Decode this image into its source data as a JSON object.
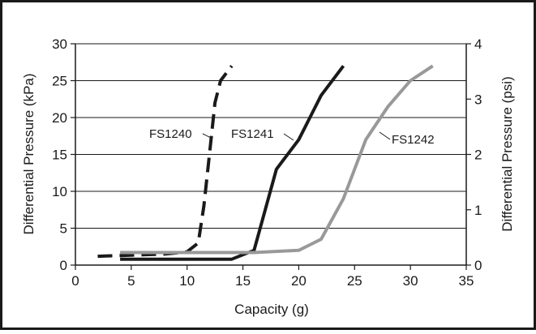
{
  "chart_data": {
    "type": "line",
    "xlabel": "Capacity (g)",
    "ylabel": "Differential Pressure (kPa)",
    "y2label": "Differential Pressure (psi)",
    "xlim": [
      0,
      35
    ],
    "ylim": [
      0,
      30
    ],
    "y2lim": [
      0,
      4
    ],
    "x_ticks": [
      "0",
      "5",
      "10",
      "15",
      "20",
      "25",
      "30",
      "35"
    ],
    "y_ticks": [
      "0",
      "5",
      "10",
      "15",
      "20",
      "25",
      "30"
    ],
    "y2_ticks": [
      "0",
      "1",
      "2",
      "3",
      "4"
    ],
    "grid": "horizontal",
    "series": [
      {
        "name": "FS1240",
        "color": "#1a1a1a",
        "style": "dashed",
        "points": [
          [
            2,
            1.2
          ],
          [
            4,
            1.3
          ],
          [
            6,
            1.4
          ],
          [
            8,
            1.5
          ],
          [
            10,
            1.8
          ],
          [
            11,
            3
          ],
          [
            11.5,
            8
          ],
          [
            12,
            15
          ],
          [
            12.5,
            22
          ],
          [
            13,
            25
          ],
          [
            14,
            27
          ]
        ]
      },
      {
        "name": "FS1241",
        "color": "#1a1a1a",
        "style": "solid",
        "points": [
          [
            4,
            0.8
          ],
          [
            8,
            0.8
          ],
          [
            12,
            0.8
          ],
          [
            14,
            0.8
          ],
          [
            16,
            2
          ],
          [
            18,
            13
          ],
          [
            20,
            17
          ],
          [
            22,
            23
          ],
          [
            24,
            27
          ]
        ]
      },
      {
        "name": "FS1242",
        "color": "#999999",
        "style": "solid",
        "points": [
          [
            4,
            1.7
          ],
          [
            10,
            1.7
          ],
          [
            16,
            1.7
          ],
          [
            20,
            2
          ],
          [
            22,
            3.5
          ],
          [
            24,
            9
          ],
          [
            26,
            17
          ],
          [
            28,
            21.5
          ],
          [
            30,
            25
          ],
          [
            32,
            27
          ]
        ]
      }
    ]
  }
}
